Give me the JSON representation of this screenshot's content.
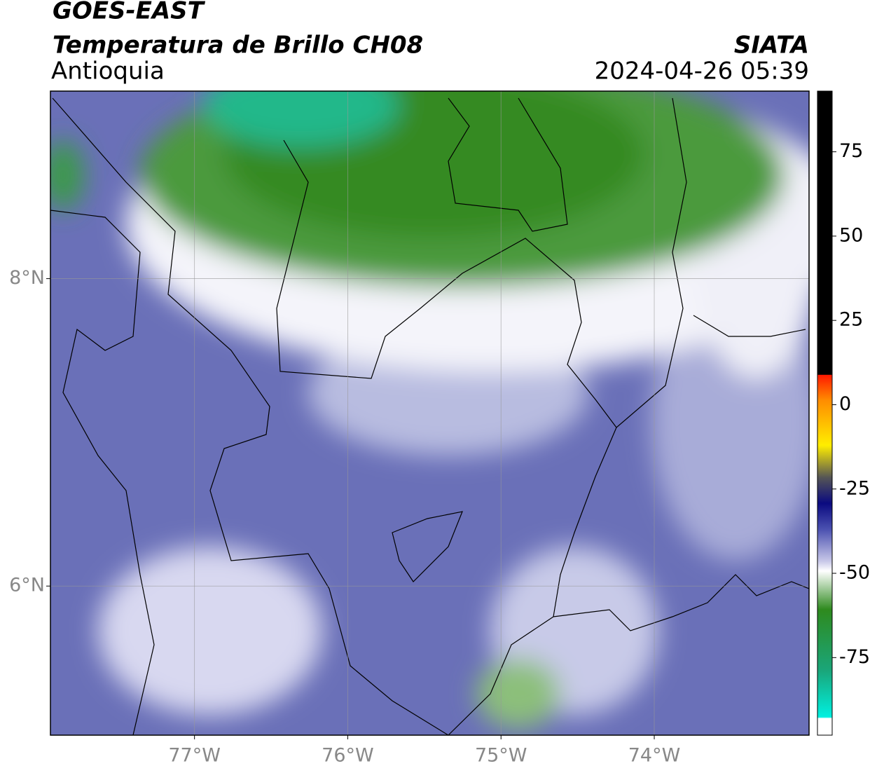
{
  "header": {
    "title": "GOES-EAST",
    "subtitle": "Temperatura de Brillo CH08",
    "region": "Antioquia",
    "source": "SIATA",
    "datetime": "2024-04-26 05:39"
  },
  "map": {
    "xlim": [
      -77.94,
      -72.99
    ],
    "ylim": [
      5.03,
      9.22
    ],
    "xticks": [
      {
        "value": -77,
        "label": "77°W"
      },
      {
        "value": -76,
        "label": "76°W"
      },
      {
        "value": -75,
        "label": "75°W"
      },
      {
        "value": -74,
        "label": "74°W"
      }
    ],
    "yticks": [
      {
        "value": 6,
        "label": "6°N"
      },
      {
        "value": 8,
        "label": "8°N"
      }
    ],
    "grid": true
  },
  "colorbar": {
    "lim": [
      -98,
      93
    ],
    "ticks": [
      -75,
      -50,
      -25,
      0,
      25,
      50,
      75
    ]
  }
}
